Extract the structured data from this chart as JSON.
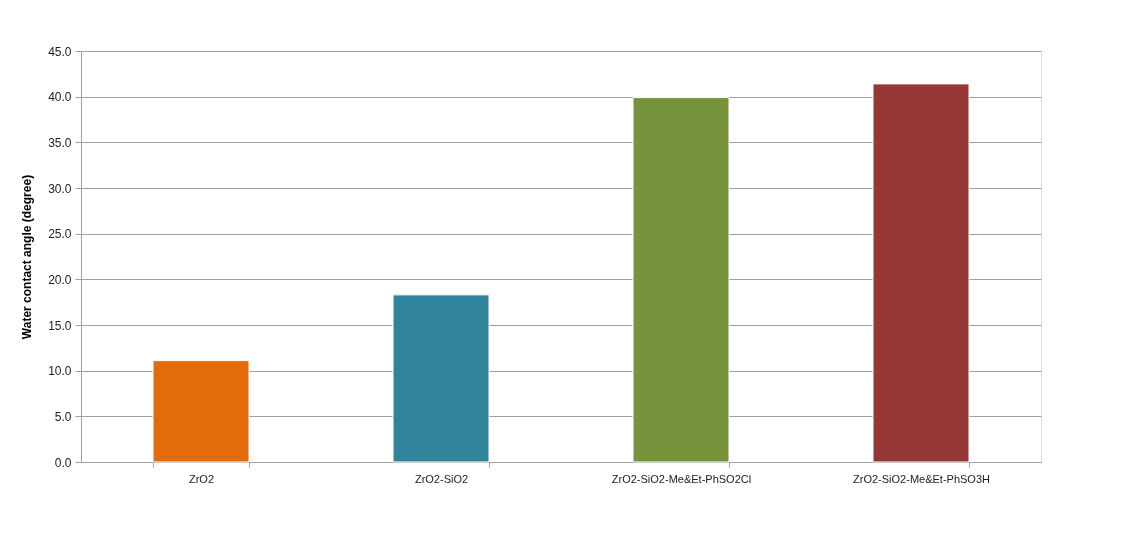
{
  "chart_data": {
    "type": "bar",
    "ylabel": "Water contact angle (degree)",
    "categories": [
      "ZrO2",
      "ZrO2-SiO2",
      "ZrO2-SiO2-Me&Et-PhSO2Cl",
      "ZrO2-SiO2-Me&Et-PhSO3H"
    ],
    "values": [
      11.1,
      18.3,
      39.9,
      41.4
    ],
    "colors": [
      "#e36c0a",
      "#31849b",
      "#77933c",
      "#953735"
    ],
    "ylim": [
      0,
      45
    ],
    "yticks": [
      {
        "value": 0,
        "label": "0.0"
      },
      {
        "value": 5,
        "label": "5.0"
      },
      {
        "value": 10,
        "label": "10.0"
      },
      {
        "value": 15,
        "label": "15.0"
      },
      {
        "value": 20,
        "label": "20.0"
      },
      {
        "value": 25,
        "label": "25.0"
      },
      {
        "value": 30,
        "label": "30.0"
      },
      {
        "value": 35,
        "label": "35.0"
      },
      {
        "value": 40,
        "label": "40.0"
      },
      {
        "value": 45,
        "label": "45.0"
      }
    ],
    "grid": "y",
    "legend": false
  }
}
